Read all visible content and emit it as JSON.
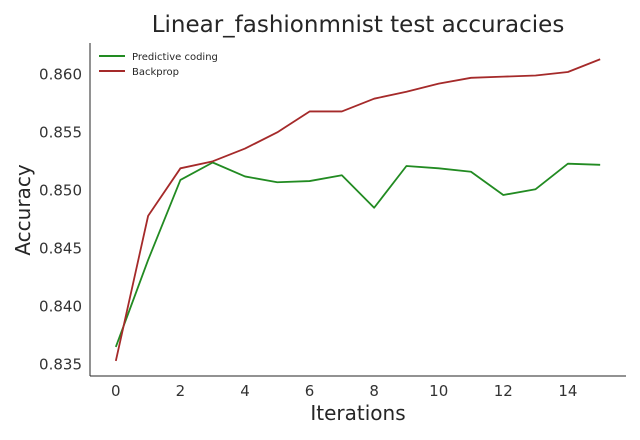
{
  "chart_data": {
    "type": "line",
    "title": "Linear_fashionmnist test accuracies",
    "xlabel": "Iterations",
    "ylabel": "Accuracy",
    "x": [
      0,
      1,
      2,
      3,
      4,
      5,
      6,
      7,
      8,
      9,
      10,
      11,
      12,
      13,
      14,
      15
    ],
    "xlim": [
      -0.8,
      15.8
    ],
    "ylim": [
      0.834,
      0.8627
    ],
    "xticks": [
      0,
      2,
      4,
      6,
      8,
      10,
      12,
      14
    ],
    "yticks": [
      0.835,
      0.84,
      0.845,
      0.85,
      0.855,
      0.86
    ],
    "ytick_labels": [
      "0.835",
      "0.840",
      "0.845",
      "0.850",
      "0.855",
      "0.860"
    ],
    "grid": false,
    "legend_position": "top-left",
    "series": [
      {
        "name": "Predictive coding",
        "color": "#228b22",
        "values": [
          0.8365,
          0.844,
          0.8509,
          0.8524,
          0.8512,
          0.8507,
          0.8508,
          0.8513,
          0.8485,
          0.8521,
          0.8519,
          0.8516,
          0.8496,
          0.8501,
          0.8523,
          0.8522
        ]
      },
      {
        "name": "Backprop",
        "color": "#a52a2a",
        "values": [
          0.8353,
          0.8478,
          0.8519,
          0.8525,
          0.8536,
          0.855,
          0.8568,
          0.8568,
          0.8579,
          0.8585,
          0.8592,
          0.8597,
          0.8598,
          0.8599,
          0.8602,
          0.8613
        ]
      }
    ]
  }
}
